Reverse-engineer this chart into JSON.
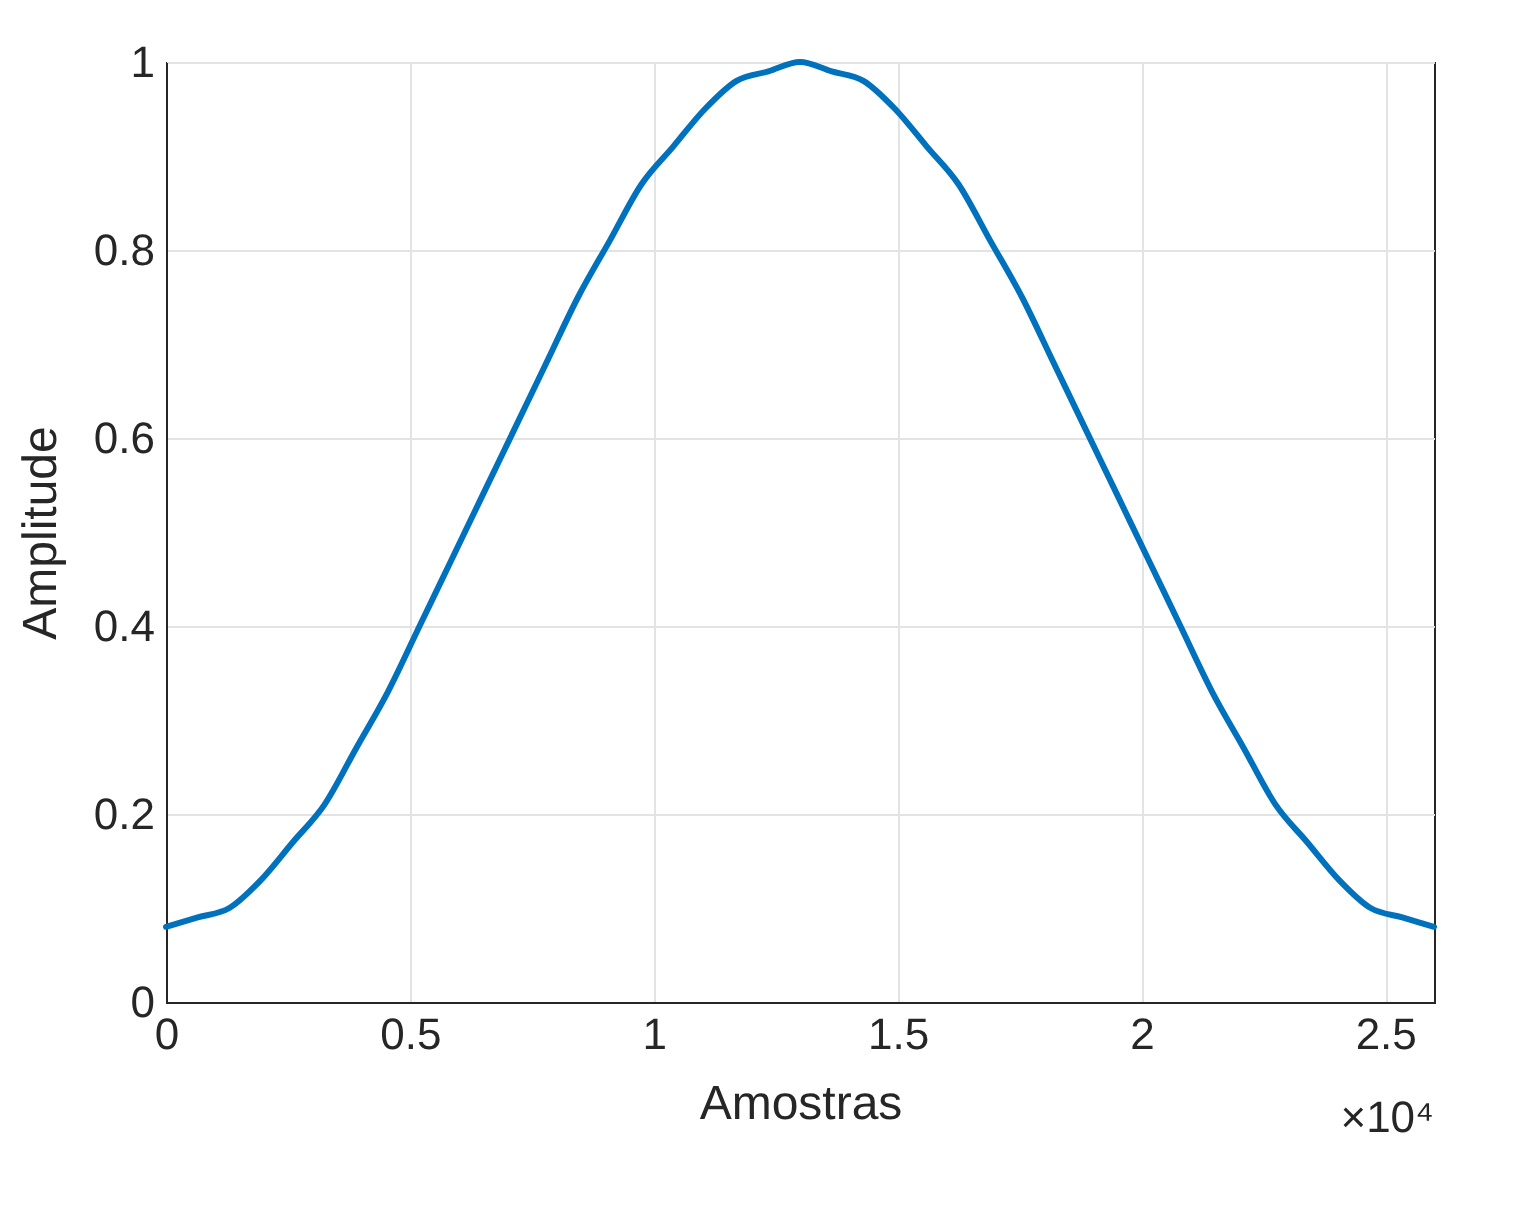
{
  "chart_data": {
    "type": "line",
    "xlabel": "Amostras",
    "ylabel": "Amplitude",
    "x": [
      0,
      0.065,
      0.13,
      0.195,
      0.26,
      0.325,
      0.39,
      0.455,
      0.52,
      0.585,
      0.65,
      0.715,
      0.78,
      0.845,
      0.91,
      0.975,
      1.04,
      1.105,
      1.17,
      1.235,
      1.3,
      1.365,
      1.43,
      1.495,
      1.56,
      1.625,
      1.69,
      1.755,
      1.82,
      1.885,
      1.95,
      2.015,
      2.08,
      2.145,
      2.21,
      2.275,
      2.34,
      2.405,
      2.47,
      2.535,
      2.6
    ],
    "series": [
      {
        "color": "#0072bd",
        "values": [
          0.08,
          0.09,
          0.1,
          0.13,
          0.17,
          0.21,
          0.27,
          0.33,
          0.4,
          0.47,
          0.54,
          0.61,
          0.68,
          0.75,
          0.81,
          0.87,
          0.91,
          0.95,
          0.98,
          0.99,
          1.0,
          0.99,
          0.98,
          0.95,
          0.91,
          0.87,
          0.81,
          0.75,
          0.68,
          0.61,
          0.54,
          0.47,
          0.4,
          0.33,
          0.27,
          0.21,
          0.17,
          0.13,
          0.1,
          0.09,
          0.08
        ]
      }
    ],
    "xlim": [
      0,
      2.6
    ],
    "xticks": [
      0,
      0.5,
      1,
      1.5,
      2,
      2.5
    ],
    "ylim": [
      0,
      1
    ],
    "yticks": [
      0,
      0.2,
      0.4,
      0.6,
      0.8,
      1
    ],
    "grid": true,
    "marker": "none",
    "line_style": "solid",
    "annotations": [
      "×10⁴"
    ]
  }
}
